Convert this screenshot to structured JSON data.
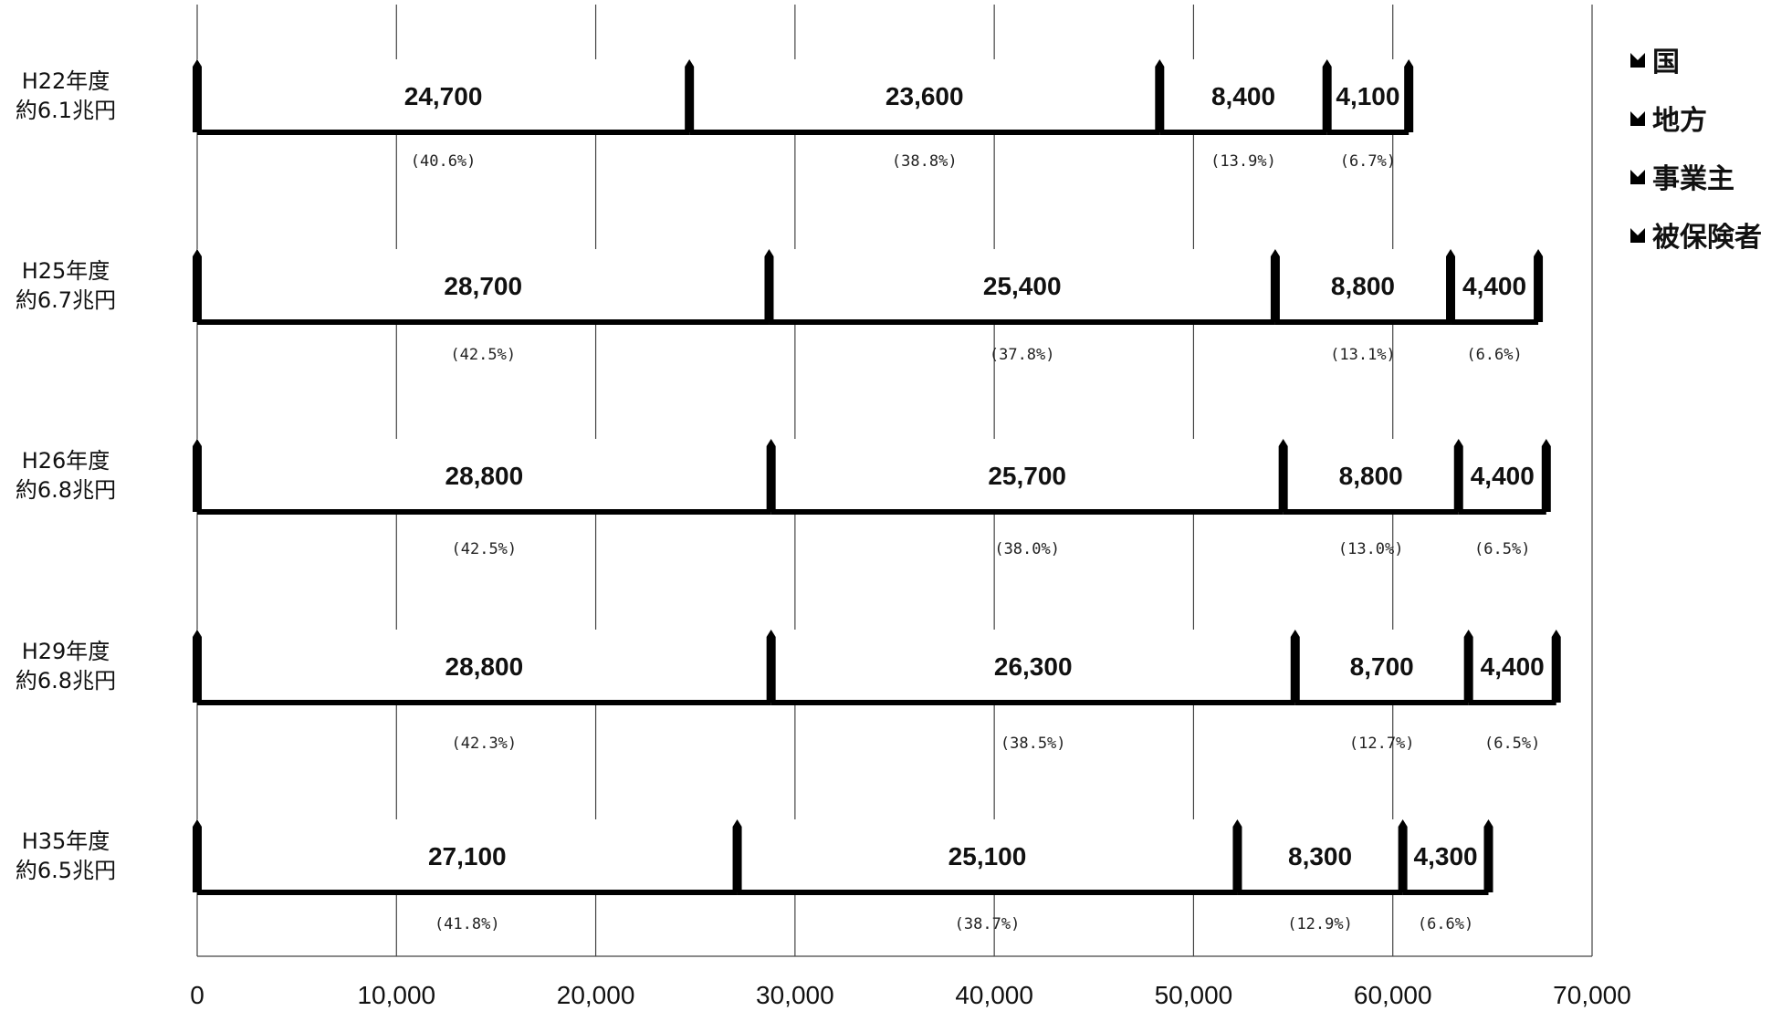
{
  "chart_data": {
    "type": "bar",
    "orientation": "horizontal",
    "stacked": true,
    "categories": [
      [
        "H22年度",
        "約6.1兆円"
      ],
      [
        "H25年度",
        "約6.7兆円"
      ],
      [
        "H26年度",
        "約6.8兆円"
      ],
      [
        "H29年度",
        "約6.8兆円"
      ],
      [
        "H35年度",
        "約6.5兆円"
      ]
    ],
    "series": [
      {
        "name": "国",
        "values": [
          24700,
          28700,
          28800,
          28800,
          27100
        ],
        "labels": [
          "24,700",
          "28,700",
          "28,800",
          "28,800",
          "27,100"
        ],
        "percents": [
          "(40.6%)",
          "(42.5%)",
          "(42.5%)",
          "(42.3%)",
          "(41.8%)"
        ]
      },
      {
        "name": "地方",
        "values": [
          23600,
          25400,
          25700,
          26300,
          25100
        ],
        "labels": [
          "23,600",
          "25,400",
          "25,700",
          "26,300",
          "25,100"
        ],
        "percents": [
          "(38.8%)",
          "(37.8%)",
          "(38.0%)",
          "(38.5%)",
          "(38.7%)"
        ]
      },
      {
        "name": "事業主",
        "values": [
          8400,
          8800,
          8800,
          8700,
          8300
        ],
        "labels": [
          "8,400",
          "8,800",
          "8,800",
          "8,700",
          "8,300"
        ],
        "percents": [
          "(13.9%)",
          "(13.1%)",
          "(13.0%)",
          "(12.7%)",
          "(12.9%)"
        ]
      },
      {
        "name": "被保険者",
        "values": [
          4100,
          4400,
          4400,
          4400,
          4300
        ],
        "labels": [
          "4,100",
          "4,400",
          "4,400",
          "4,400",
          "4,300"
        ],
        "percents": [
          "(6.7%)",
          "(6.6%)",
          "(6.5%)",
          "(6.5%)",
          "(6.6%)"
        ]
      }
    ],
    "xlim": [
      0,
      70000
    ],
    "xticks": [
      0,
      10000,
      20000,
      30000,
      40000,
      50000,
      60000,
      70000
    ],
    "xtick_labels": [
      "0",
      "10,000",
      "20,000",
      "30,000",
      "40,000",
      "50,000",
      "60,000",
      "70,000"
    ],
    "grid": true,
    "legend": "right",
    "title": "",
    "xlabel": "",
    "ylabel": "",
    "colors": {
      "bar_fill": "#ffffff",
      "bar_edge": "#000000",
      "grid": "#444444",
      "text": "#111111"
    },
    "legend_icon": "m-shaped-marker-icon"
  }
}
